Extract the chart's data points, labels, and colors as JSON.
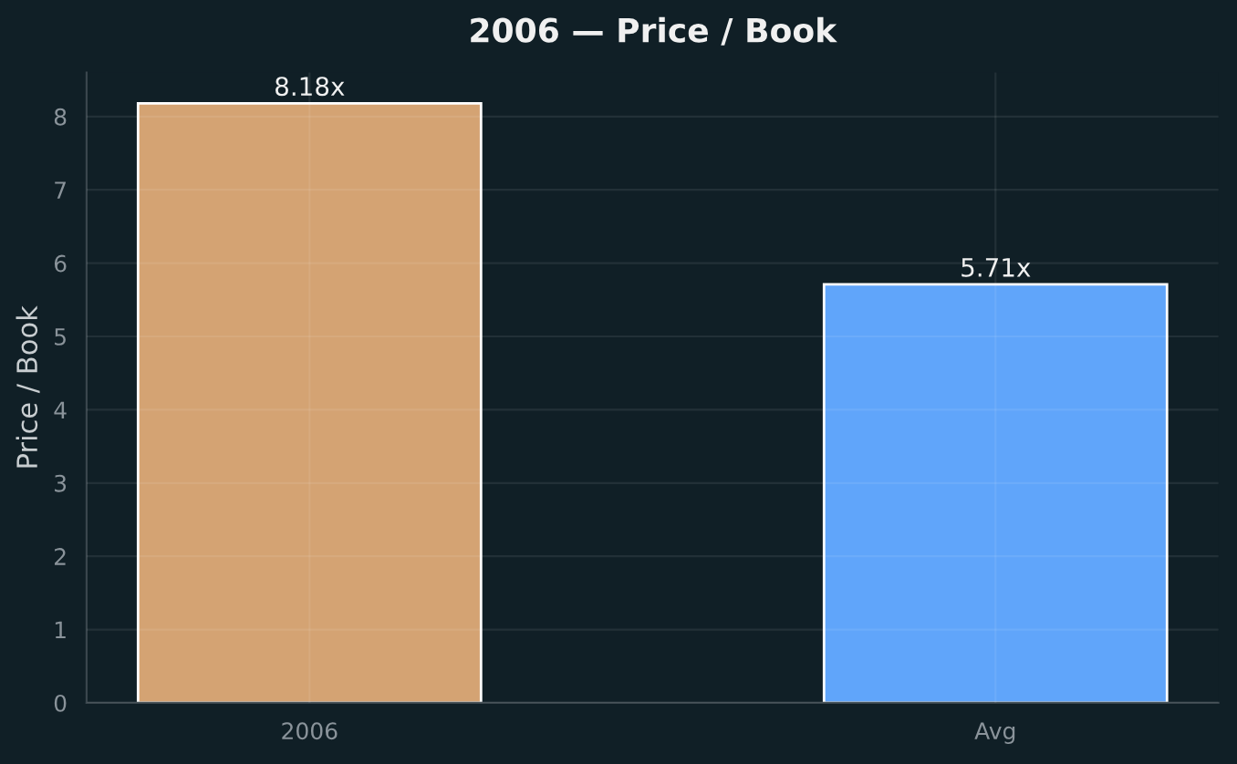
{
  "chart_data": {
    "type": "bar",
    "title": "2006 — Price / Book",
    "ylabel": "Price / Book",
    "categories": [
      "2006",
      "Avg"
    ],
    "values": [
      8.18,
      5.71
    ],
    "colors": [
      "#d4a373",
      "#60a5fa"
    ],
    "value_labels": [
      "8.18x",
      "5.71x"
    ],
    "ylim": [
      0,
      8.6
    ],
    "yticks": [
      0,
      1,
      2,
      3,
      4,
      5,
      6,
      7,
      8
    ],
    "grid": true
  }
}
